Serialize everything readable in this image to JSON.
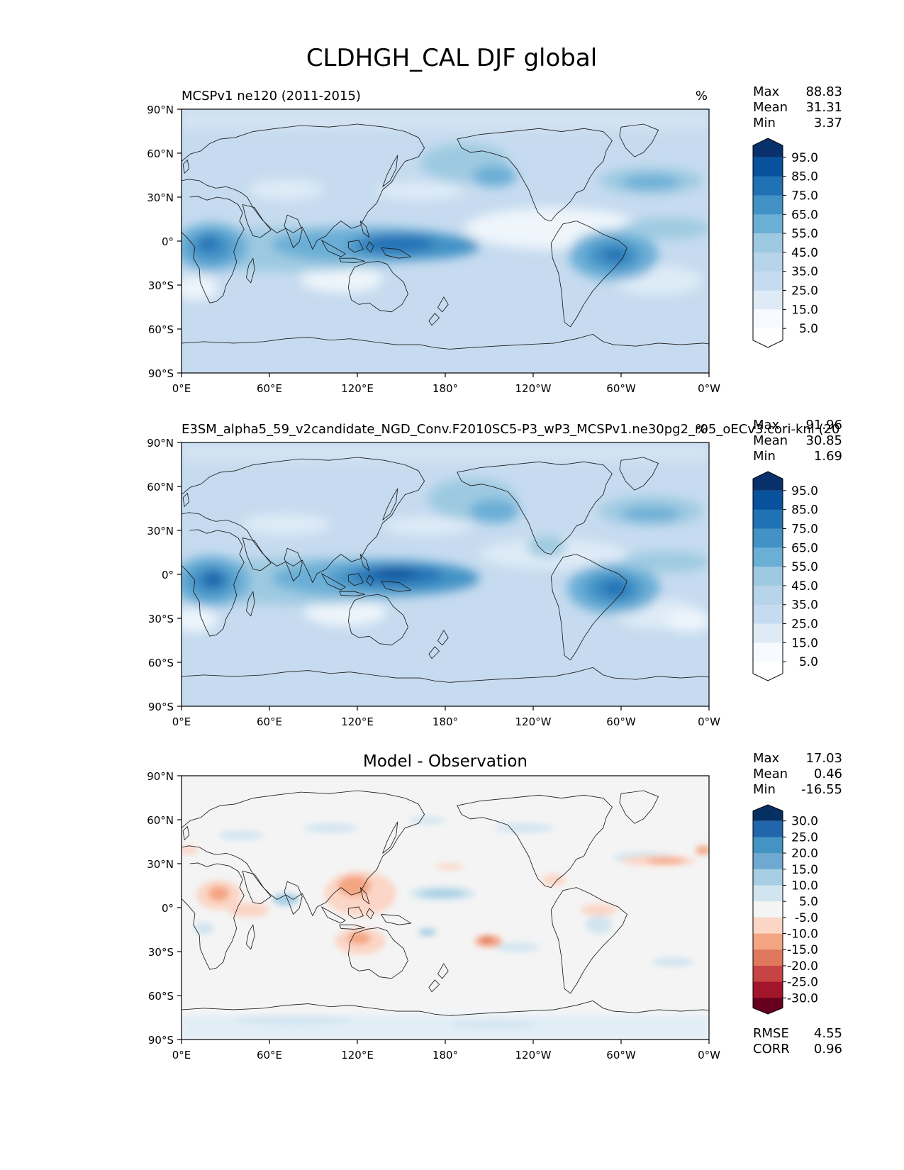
{
  "figure": {
    "title": "CLDHGH_CAL DJF global"
  },
  "axes": {
    "lat_labels": [
      "90°N",
      "60°N",
      "30°N",
      "0°",
      "30°S",
      "60°S",
      "90°S"
    ],
    "lon_labels": [
      "0°E",
      "60°E",
      "120°E",
      "180°",
      "120°W",
      "60°W",
      "0°W"
    ]
  },
  "panels": [
    {
      "title_left": "MCSPv1 ne120 (2011-2015)",
      "title_center": "",
      "units": "%",
      "stats": [
        {
          "label": "Max",
          "value": "88.83"
        },
        {
          "label": "Mean",
          "value": "31.31"
        },
        {
          "label": "Min",
          "value": "3.37"
        }
      ],
      "colorbar": {
        "labels": [
          "95.0",
          "85.0",
          "75.0",
          "65.0",
          "55.0",
          "45.0",
          "35.0",
          "25.0",
          "15.0",
          "5.0"
        ],
        "colors": [
          "#08306b",
          "#08519c",
          "#2171b5",
          "#4292c6",
          "#6baed6",
          "#9ecae1",
          "#b6d4ea",
          "#c6dbef",
          "#deebf7",
          "#f7fbff",
          "#ffffff"
        ]
      },
      "footer_stats": []
    },
    {
      "title_left": "E3SM_alpha5_59_v2candidate_NGD_Conv.F2010SC5-P3_wP3_MCSPv1.ne30pg2_r05_oECv3.cori-knl (20",
      "title_center": "",
      "units": "%",
      "stats": [
        {
          "label": "Max",
          "value": "91.96"
        },
        {
          "label": "Mean",
          "value": "30.85"
        },
        {
          "label": "Min",
          "value": "1.69"
        }
      ],
      "colorbar": {
        "labels": [
          "95.0",
          "85.0",
          "75.0",
          "65.0",
          "55.0",
          "45.0",
          "35.0",
          "25.0",
          "15.0",
          "5.0"
        ],
        "colors": [
          "#08306b",
          "#08519c",
          "#2171b5",
          "#4292c6",
          "#6baed6",
          "#9ecae1",
          "#b6d4ea",
          "#c6dbef",
          "#deebf7",
          "#f7fbff",
          "#ffffff"
        ]
      },
      "footer_stats": []
    },
    {
      "title_left": "",
      "title_center": "Model - Observation",
      "units": "",
      "stats": [
        {
          "label": "Max",
          "value": "17.03"
        },
        {
          "label": "Mean",
          "value": "0.46"
        },
        {
          "label": "Min",
          "value": "-16.55"
        }
      ],
      "colorbar": {
        "labels": [
          "30.0",
          "25.0",
          "20.0",
          "15.0",
          "10.0",
          "5.0",
          "-5.0",
          "-10.0",
          "-15.0",
          "-20.0",
          "-25.0",
          "-30.0"
        ],
        "colors": [
          "#053061",
          "#2166ac",
          "#4393c3",
          "#6fa9d2",
          "#a6cee4",
          "#d1e5f0",
          "#f4f4f4",
          "#fbd6c6",
          "#f4a582",
          "#e0785e",
          "#c64444",
          "#a3152b",
          "#67001f"
        ]
      },
      "footer_stats": [
        {
          "label": "RMSE",
          "value": "4.55"
        },
        {
          "label": "CORR",
          "value": "0.96"
        }
      ]
    }
  ]
}
